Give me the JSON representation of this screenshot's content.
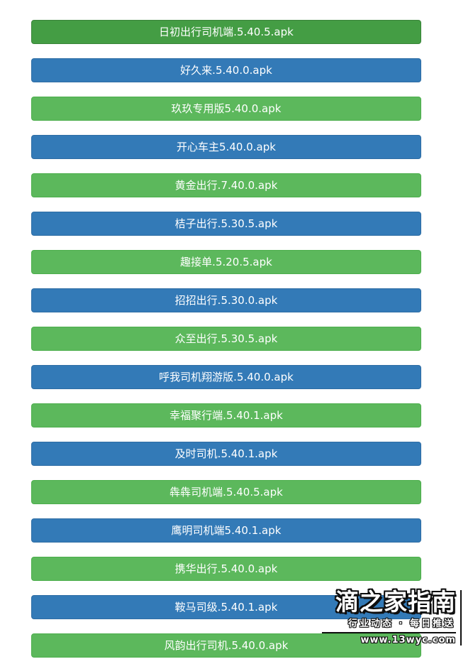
{
  "page": {
    "background": "#ffffff"
  },
  "palette": {
    "dark_green": "#449d44",
    "dark_green_border": "#398439",
    "green": "#5cb85c",
    "green_border": "#4cae4c",
    "blue": "#337ab7",
    "blue_border": "#2e6da4",
    "button_text": "#ffffff"
  },
  "downloads": [
    {
      "label": "日初出行司机端.5.40.5.apk",
      "variant": "dark-green"
    },
    {
      "label": "好久来.5.40.0.apk",
      "variant": "blue"
    },
    {
      "label": "玖玖专用版5.40.0.apk",
      "variant": "green"
    },
    {
      "label": "开心车主5.40.0.apk",
      "variant": "blue"
    },
    {
      "label": "黄金出行.7.40.0.apk",
      "variant": "green"
    },
    {
      "label": "桔子出行.5.30.5.apk",
      "variant": "blue"
    },
    {
      "label": "趣接单.5.20.5.apk",
      "variant": "green"
    },
    {
      "label": "招招出行.5.30.0.apk",
      "variant": "blue"
    },
    {
      "label": "众至出行.5.30.5.apk",
      "variant": "green"
    },
    {
      "label": "呼我司机翔游版.5.40.0.apk",
      "variant": "blue"
    },
    {
      "label": "幸福聚行端.5.40.1.apk",
      "variant": "green"
    },
    {
      "label": "及时司机.5.40.1.apk",
      "variant": "blue"
    },
    {
      "label": "犇犇司机端.5.40.5.apk",
      "variant": "green"
    },
    {
      "label": "鹰明司机端5.40.1.apk",
      "variant": "blue"
    },
    {
      "label": "携华出行.5.40.0.apk",
      "variant": "green"
    },
    {
      "label": "鞍马司级.5.40.1.apk",
      "variant": "blue"
    },
    {
      "label": "风韵出行司机.5.40.0.apk",
      "variant": "green"
    }
  ],
  "watermark": {
    "title": "滴之家指南",
    "subtitle": "行业动态 · 每日推送",
    "url": "www.13wyc.com"
  }
}
